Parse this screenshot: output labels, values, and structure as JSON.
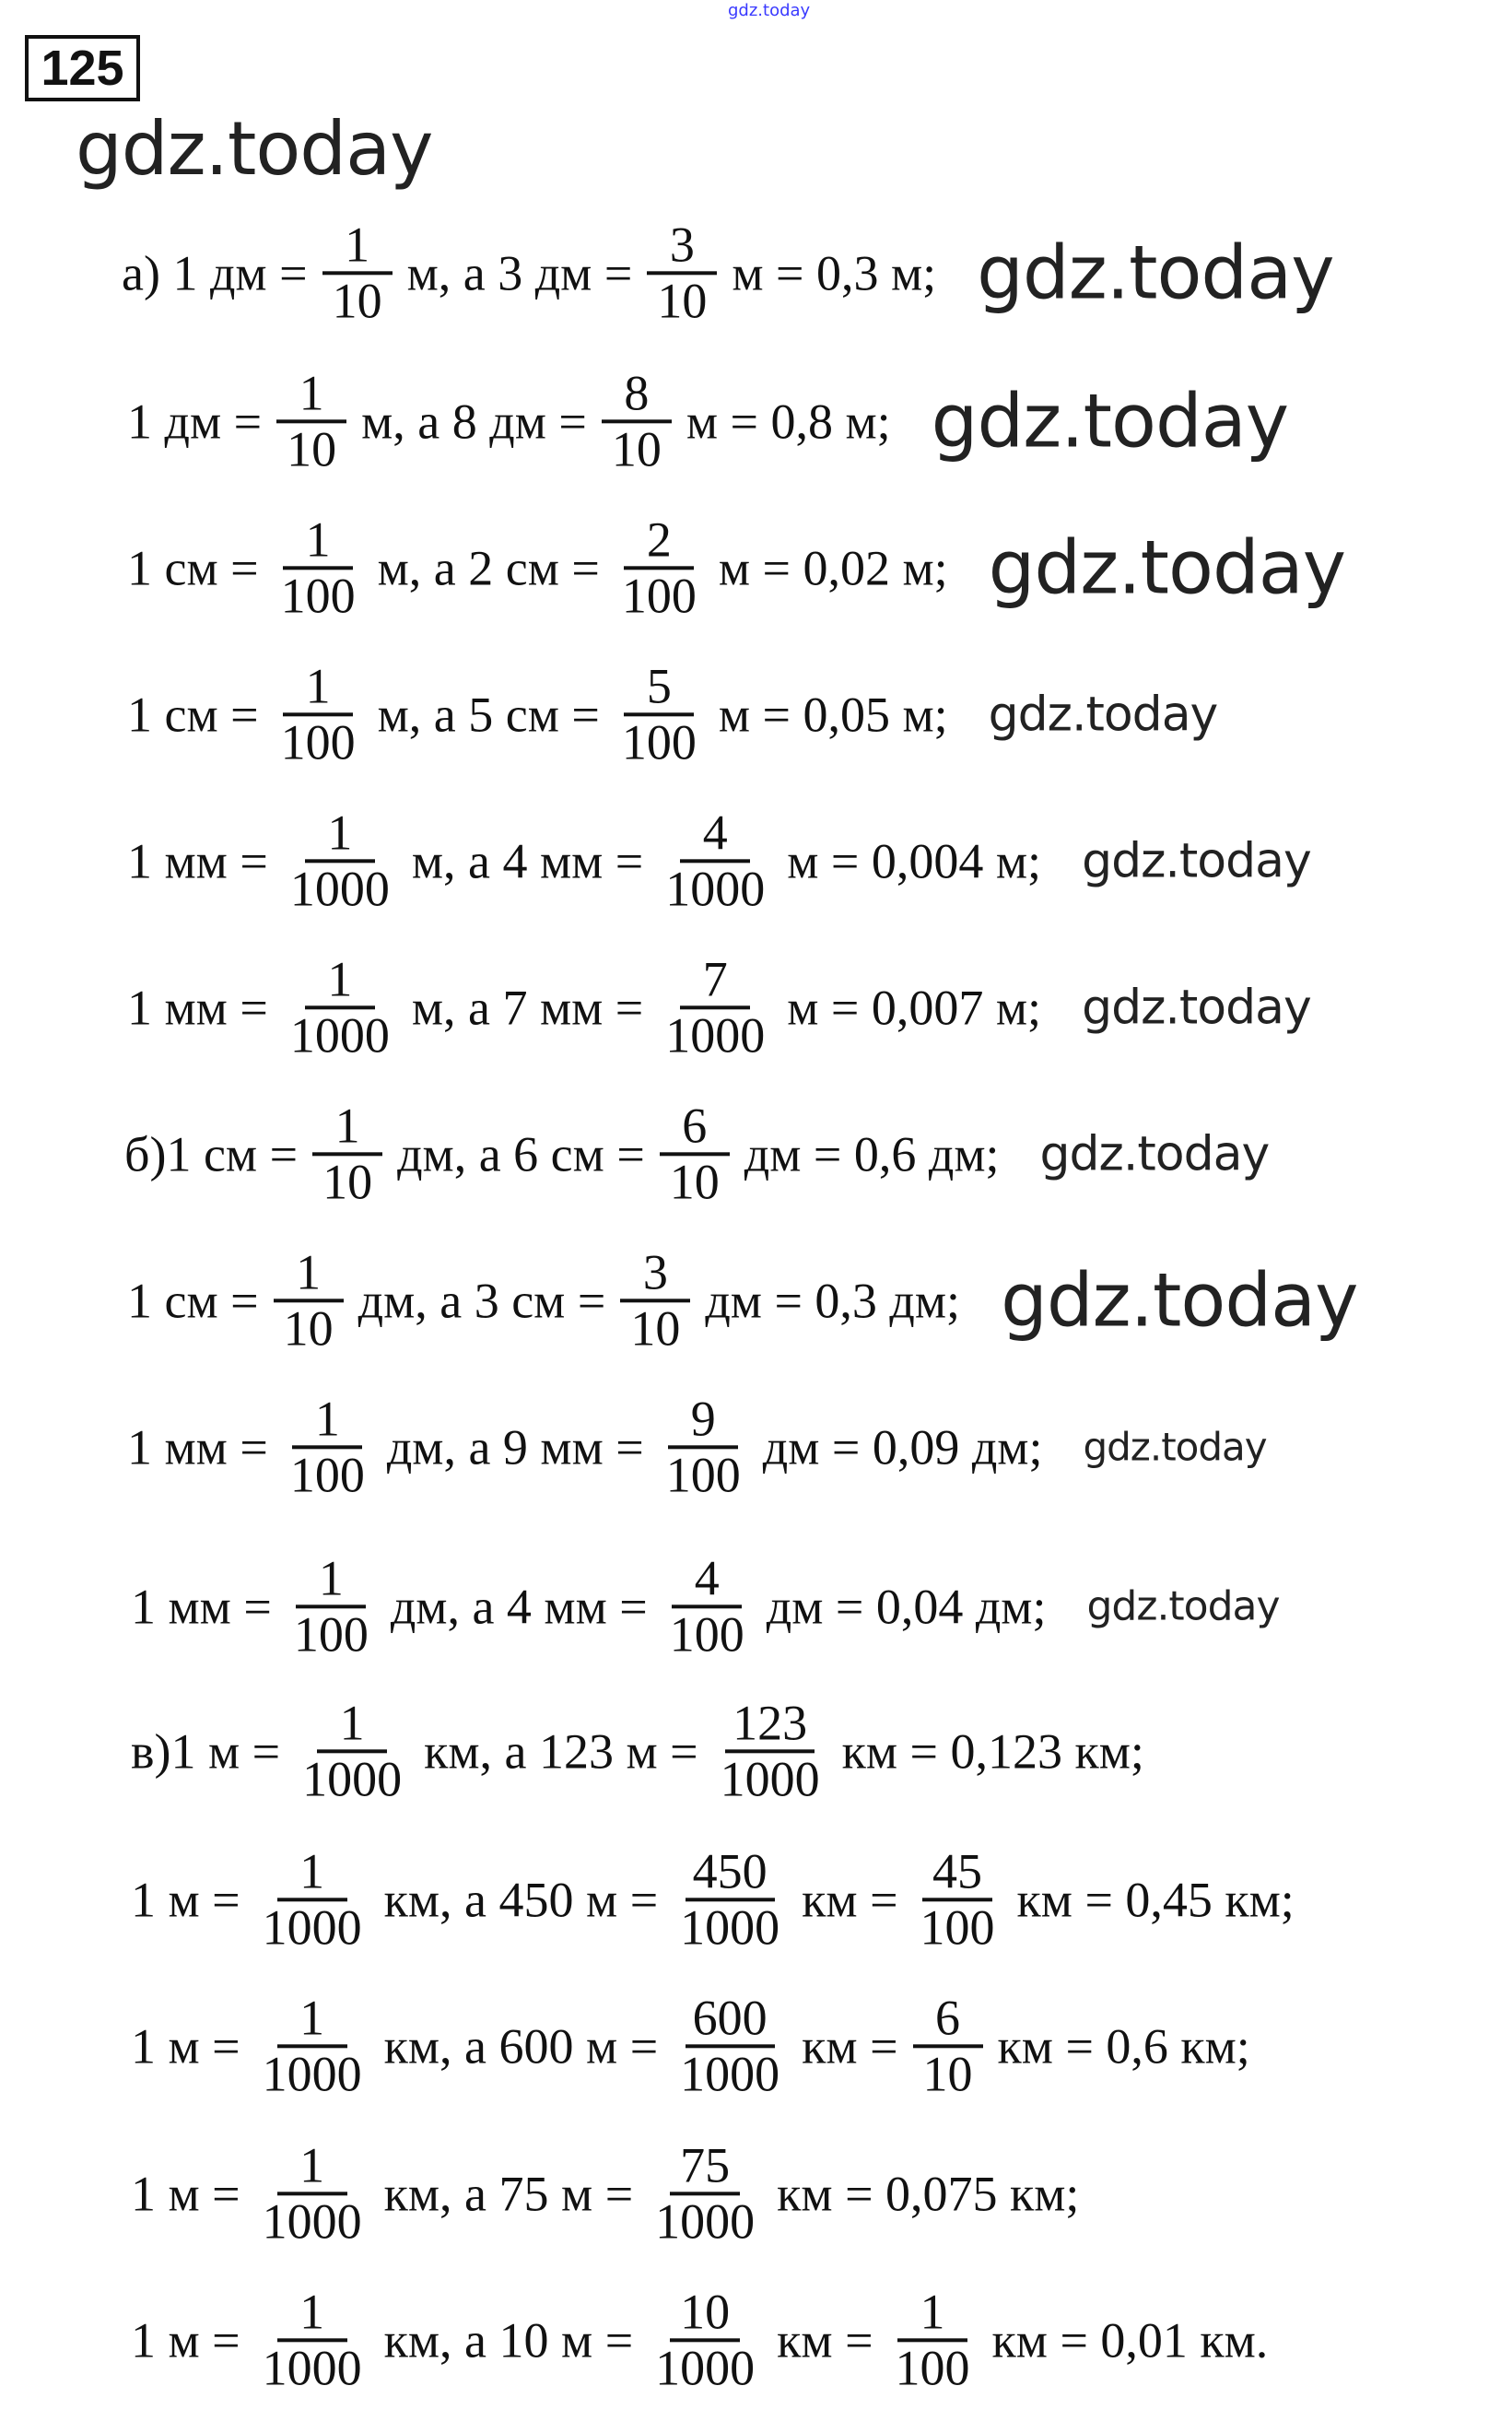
{
  "task_number": "125",
  "watermark": "gdz.today",
  "watermark_color": "#3a3aff",
  "rows": [
    {
      "parts": [
        {
          "t": "а) 1 дм ="
        },
        {
          "n": "1",
          "d": "10"
        },
        {
          "t": "м, а 3 дм ="
        },
        {
          "n": "3",
          "d": "10"
        },
        {
          "t": "м = 0,3 м;"
        }
      ]
    },
    {
      "parts": [
        {
          "t": "1 дм ="
        },
        {
          "n": "1",
          "d": "10"
        },
        {
          "t": "м, а 8 дм ="
        },
        {
          "n": "8",
          "d": "10"
        },
        {
          "t": "м = 0,8 м;"
        }
      ]
    },
    {
      "parts": [
        {
          "t": "1 см ="
        },
        {
          "n": "1",
          "d": "100"
        },
        {
          "t": "м, а 2 см ="
        },
        {
          "n": "2",
          "d": "100"
        },
        {
          "t": "м = 0,02 м;"
        }
      ]
    },
    {
      "parts": [
        {
          "t": "1 см ="
        },
        {
          "n": "1",
          "d": "100"
        },
        {
          "t": "м, а 5 см ="
        },
        {
          "n": "5",
          "d": "100"
        },
        {
          "t": "м = 0,05 м;"
        }
      ]
    },
    {
      "parts": [
        {
          "t": "1 мм ="
        },
        {
          "n": "1",
          "d": "1000"
        },
        {
          "t": "м, а 4 мм ="
        },
        {
          "n": "4",
          "d": "1000"
        },
        {
          "t": "м = 0,004 м;"
        }
      ]
    },
    {
      "parts": [
        {
          "t": "1 мм ="
        },
        {
          "n": "1",
          "d": "1000"
        },
        {
          "t": "м, а 7 мм ="
        },
        {
          "n": "7",
          "d": "1000"
        },
        {
          "t": "м = 0,007 м;"
        }
      ]
    },
    {
      "parts": [
        {
          "t": "б)1 см ="
        },
        {
          "n": "1",
          "d": "10"
        },
        {
          "t": "дм, а 6 см ="
        },
        {
          "n": "6",
          "d": "10"
        },
        {
          "t": "дм = 0,6 дм;"
        }
      ]
    },
    {
      "parts": [
        {
          "t": "1 см ="
        },
        {
          "n": "1",
          "d": "10"
        },
        {
          "t": "дм, а 3 см ="
        },
        {
          "n": "3",
          "d": "10"
        },
        {
          "t": "дм = 0,3 дм;"
        }
      ]
    },
    {
      "parts": [
        {
          "t": "1 мм ="
        },
        {
          "n": "1",
          "d": "100"
        },
        {
          "t": "дм, а 9 мм ="
        },
        {
          "n": "9",
          "d": "100"
        },
        {
          "t": "дм = 0,09 дм;"
        }
      ]
    },
    {
      "parts": [
        {
          "t": "1 мм ="
        },
        {
          "n": "1",
          "d": "100"
        },
        {
          "t": "дм, а 4 мм ="
        },
        {
          "n": "4",
          "d": "100"
        },
        {
          "t": "дм = 0,04 дм;"
        }
      ]
    },
    {
      "parts": [
        {
          "t": "в)1 м ="
        },
        {
          "n": "1",
          "d": "1000"
        },
        {
          "t": "км, а 123 м ="
        },
        {
          "n": "123",
          "d": "1000"
        },
        {
          "t": "км = 0,123 км;"
        }
      ]
    },
    {
      "parts": [
        {
          "t": "1 м ="
        },
        {
          "n": "1",
          "d": "1000"
        },
        {
          "t": "км, а 450 м ="
        },
        {
          "n": "450",
          "d": "1000"
        },
        {
          "t": "км ="
        },
        {
          "n": "45",
          "d": "100"
        },
        {
          "t": "км = 0,45 км;"
        }
      ]
    },
    {
      "parts": [
        {
          "t": "1 м ="
        },
        {
          "n": "1",
          "d": "1000"
        },
        {
          "t": "км, а 600 м ="
        },
        {
          "n": "600",
          "d": "1000"
        },
        {
          "t": "км ="
        },
        {
          "n": "6",
          "d": "10"
        },
        {
          "t": "км = 0,6 км;"
        }
      ]
    },
    {
      "parts": [
        {
          "t": "1 м ="
        },
        {
          "n": "1",
          "d": "1000"
        },
        {
          "t": "км, а 75 м ="
        },
        {
          "n": "75",
          "d": "1000"
        },
        {
          "t": "км = 0,075 км;"
        }
      ]
    },
    {
      "parts": [
        {
          "t": "1 м ="
        },
        {
          "n": "1",
          "d": "1000"
        },
        {
          "t": "км, а 10 м ="
        },
        {
          "n": "10",
          "d": "1000"
        },
        {
          "t": "км ="
        },
        {
          "n": "1",
          "d": "100"
        },
        {
          "t": "км = 0,01 км."
        }
      ]
    }
  ]
}
